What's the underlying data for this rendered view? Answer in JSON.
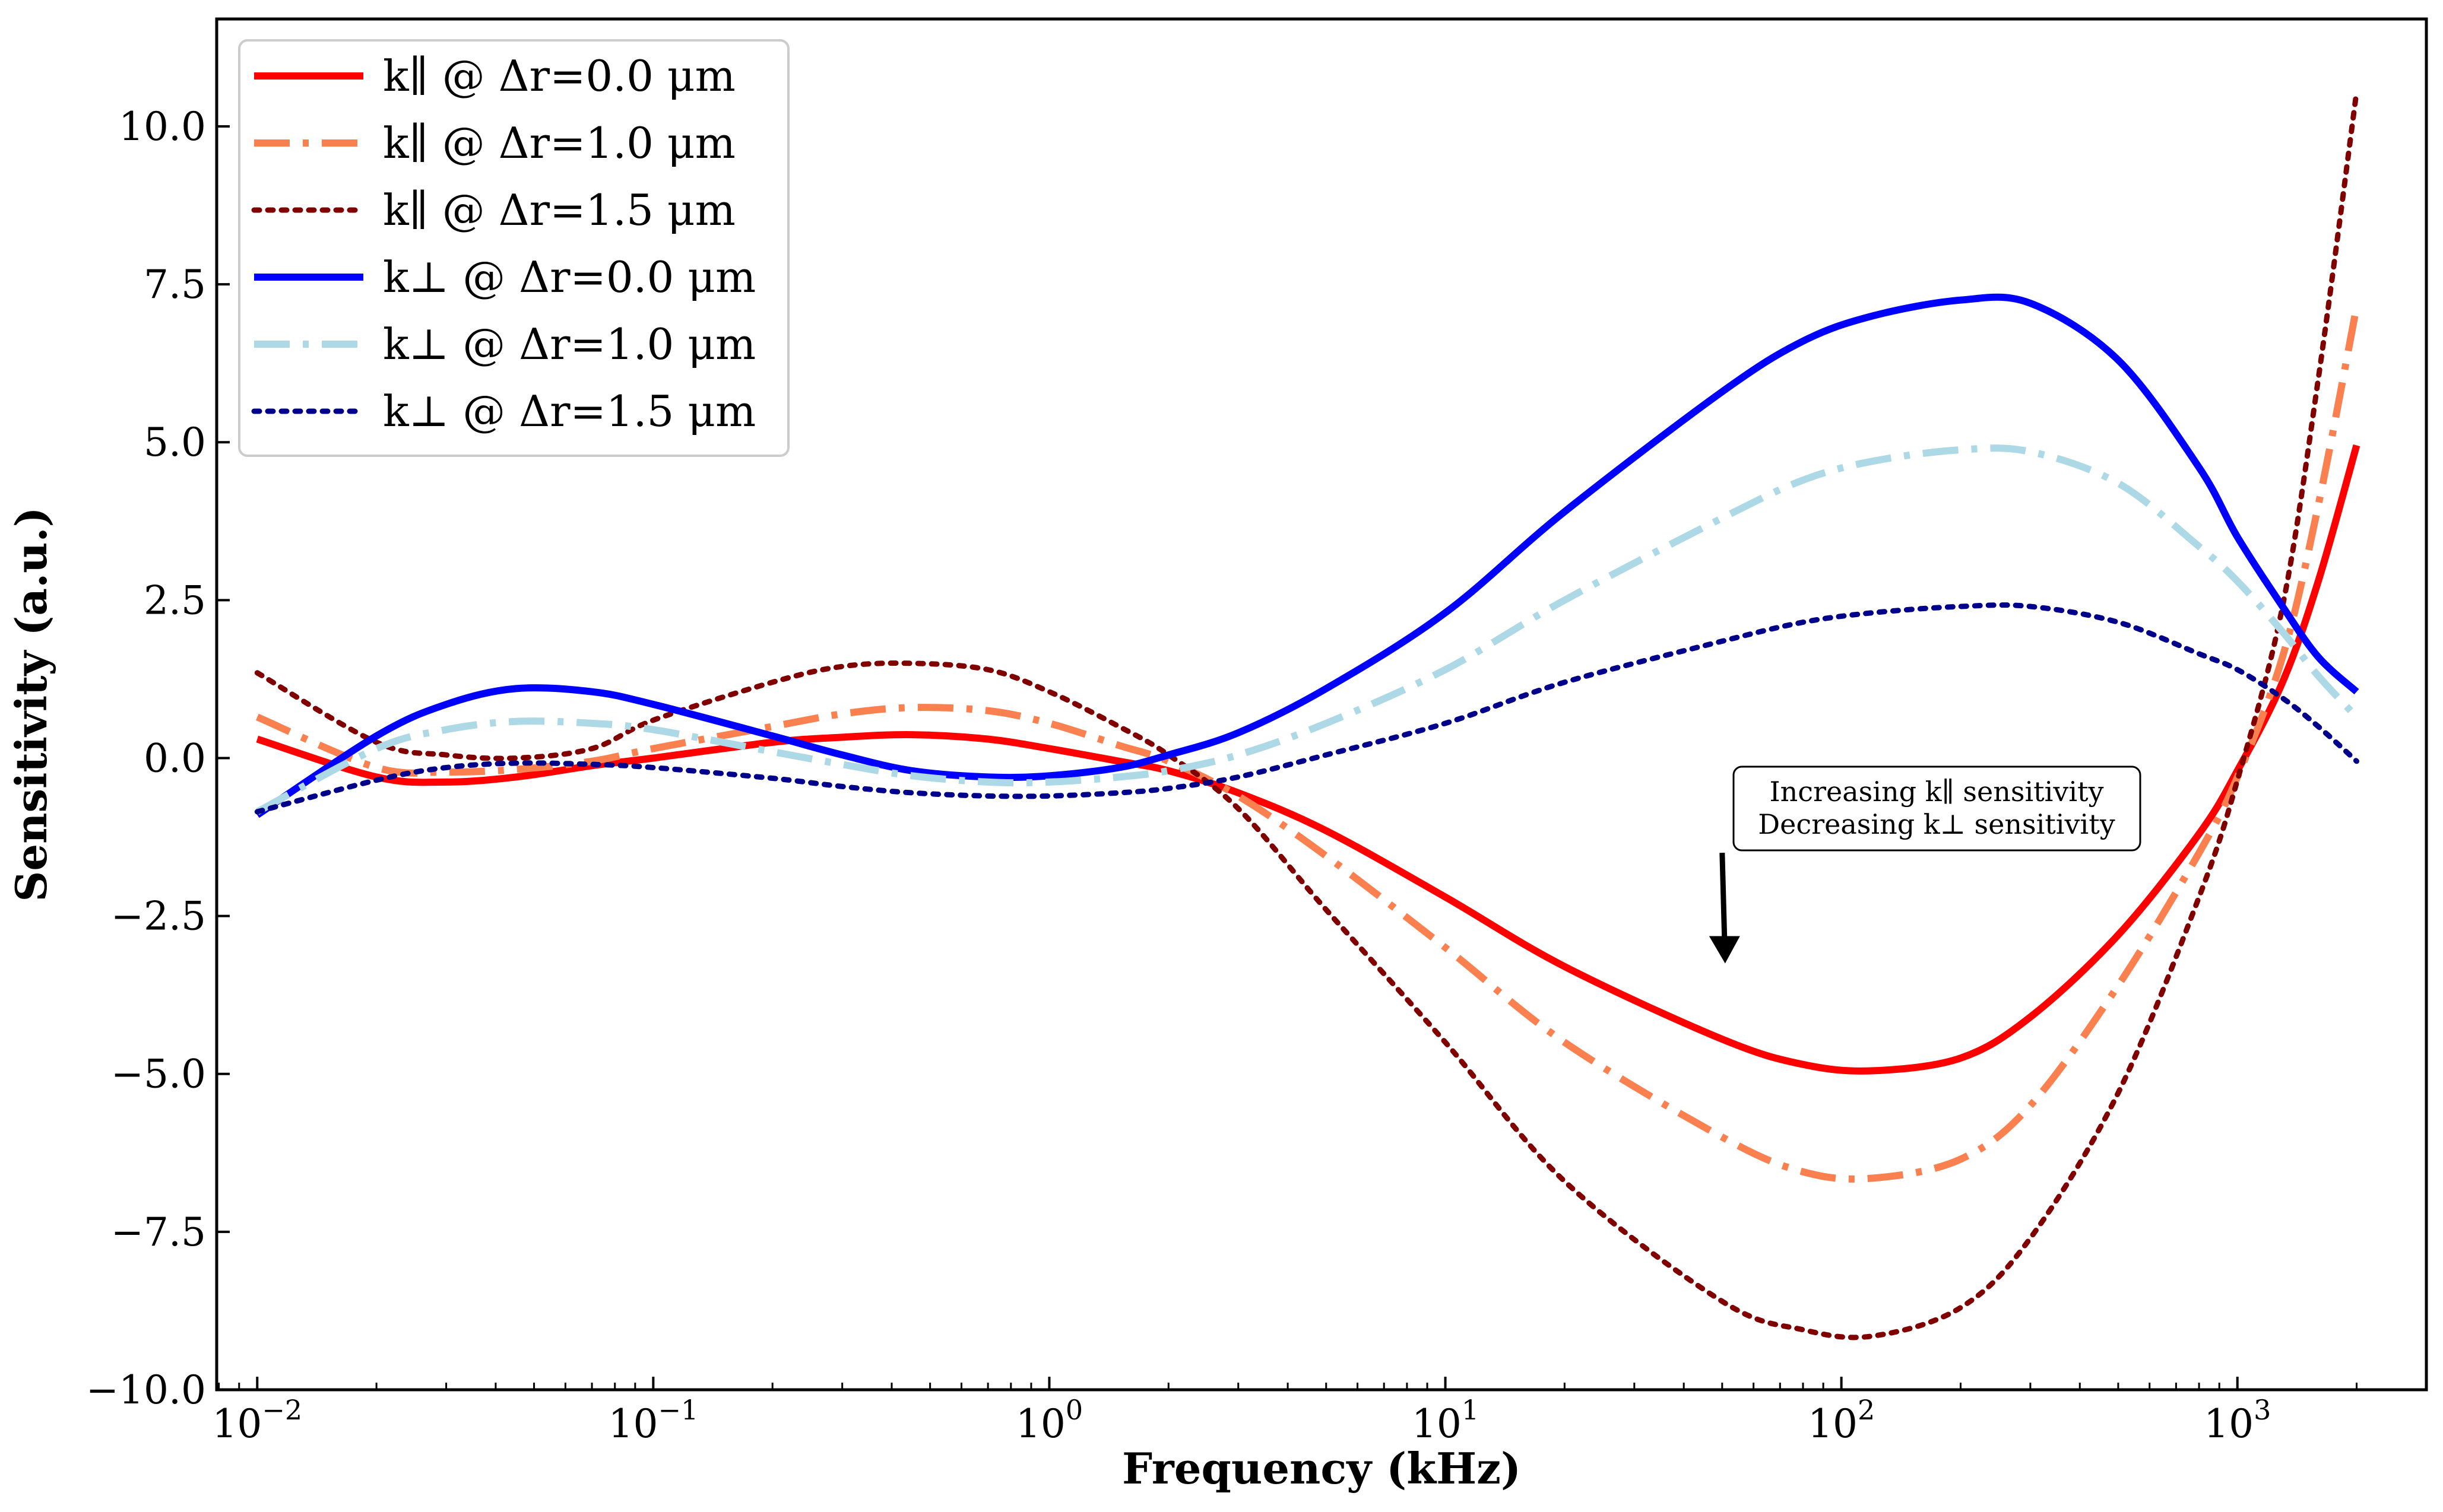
{
  "chart_data": {
    "type": "line",
    "title": "",
    "xlabel": "Frequency (kHz)",
    "ylabel": "Sensitivity (a.u.)",
    "xscale": "log",
    "xlim": [
      0.0079,
      3000
    ],
    "ylim": [
      -10.0,
      11.7
    ],
    "grid": false,
    "legend_position": "top-left",
    "yticks": [
      -10.0,
      -7.5,
      -5.0,
      -2.5,
      0.0,
      2.5,
      5.0,
      7.5,
      10.0
    ],
    "ytick_labels": [
      "−10.0",
      "−7.5",
      "−5.0",
      "−2.5",
      "0.0",
      "2.5",
      "5.0",
      "7.5",
      "10.0"
    ],
    "xticks": [
      0.01,
      0.1,
      1,
      10,
      100,
      1000
    ],
    "xtick_labels": [
      {
        "base": "10",
        "exp": "−2"
      },
      {
        "base": "10",
        "exp": "−1"
      },
      {
        "base": "10",
        "exp": "0"
      },
      {
        "base": "10",
        "exp": "1"
      },
      {
        "base": "10",
        "exp": "2"
      },
      {
        "base": "10",
        "exp": "3"
      }
    ],
    "x": [
      0.01,
      0.02,
      0.03,
      0.045,
      0.07,
      0.1,
      0.2,
      0.3,
      0.45,
      0.7,
      1,
      1.5,
      2,
      3,
      5,
      10,
      20,
      50,
      80,
      120,
      200,
      300,
      500,
      800,
      1000,
      1300,
      1600,
      2000
    ],
    "series": [
      {
        "name": "k∥ @ Δr=0.0 μm",
        "color": "#ff0000",
        "dash": "solid",
        "values": [
          0.3,
          -0.3,
          -0.38,
          -0.3,
          -0.12,
          0.0,
          0.25,
          0.33,
          0.37,
          0.3,
          0.15,
          -0.05,
          -0.2,
          -0.55,
          -1.15,
          -2.2,
          -3.3,
          -4.45,
          -4.85,
          -4.95,
          -4.75,
          -4.1,
          -2.8,
          -1.2,
          -0.2,
          1.2,
          2.8,
          4.95
        ]
      },
      {
        "name": "k∥ @ Δr=1.0 μm",
        "color": "#fa8050",
        "dash": "dashdot",
        "values": [
          0.65,
          -0.15,
          -0.22,
          -0.18,
          -0.05,
          0.15,
          0.5,
          0.7,
          0.8,
          0.75,
          0.55,
          0.2,
          -0.05,
          -0.6,
          -1.55,
          -3.0,
          -4.5,
          -6.0,
          -6.55,
          -6.65,
          -6.35,
          -5.5,
          -3.6,
          -1.5,
          -0.3,
          1.6,
          4.0,
          7.15
        ]
      },
      {
        "name": "k∥ @ Δr=1.5 μm",
        "color": "#800000",
        "dash": "dotted",
        "values": [
          1.35,
          0.25,
          0.05,
          0.0,
          0.15,
          0.6,
          1.2,
          1.45,
          1.5,
          1.4,
          1.05,
          0.5,
          0.05,
          -0.8,
          -2.4,
          -4.5,
          -6.7,
          -8.6,
          -9.05,
          -9.15,
          -8.7,
          -7.6,
          -5.3,
          -2.2,
          -0.35,
          2.4,
          6.0,
          10.55
        ]
      },
      {
        "name": "k⊥ @ Δr=0.0 μm",
        "color": "#0000ff",
        "dash": "solid",
        "values": [
          -0.9,
          0.35,
          0.85,
          1.1,
          1.05,
          0.85,
          0.35,
          0.05,
          -0.2,
          -0.3,
          -0.28,
          -0.15,
          0.05,
          0.4,
          1.1,
          2.3,
          3.9,
          5.8,
          6.6,
          7.0,
          7.25,
          7.2,
          6.3,
          4.6,
          3.5,
          2.4,
          1.6,
          1.05
        ]
      },
      {
        "name": "k⊥ @ Δr=1.0 μm",
        "color": "#add8e6",
        "dash": "dashdot",
        "values": [
          -0.85,
          0.15,
          0.45,
          0.58,
          0.55,
          0.45,
          0.1,
          -0.1,
          -0.28,
          -0.38,
          -0.38,
          -0.3,
          -0.2,
          0.05,
          0.55,
          1.4,
          2.5,
          3.8,
          4.4,
          4.7,
          4.88,
          4.85,
          4.35,
          3.35,
          2.8,
          2.0,
          1.3,
          0.65
        ]
      },
      {
        "name": "k⊥ @ Δr=1.5 μm",
        "color": "#00008b",
        "dash": "dotted",
        "values": [
          -0.85,
          -0.35,
          -0.15,
          -0.08,
          -0.1,
          -0.15,
          -0.32,
          -0.45,
          -0.55,
          -0.6,
          -0.6,
          -0.55,
          -0.48,
          -0.3,
          0.05,
          0.55,
          1.2,
          1.85,
          2.15,
          2.3,
          2.4,
          2.4,
          2.15,
          1.65,
          1.4,
          0.95,
          0.5,
          -0.05
        ]
      }
    ],
    "annotation": {
      "lines": [
        "Increasing k∥ sensitivity",
        "Decreasing k⊥ sensitivity"
      ],
      "arrow_from": [
        50,
        -1.5
      ],
      "arrow_to": [
        50,
        -3.25
      ]
    }
  }
}
